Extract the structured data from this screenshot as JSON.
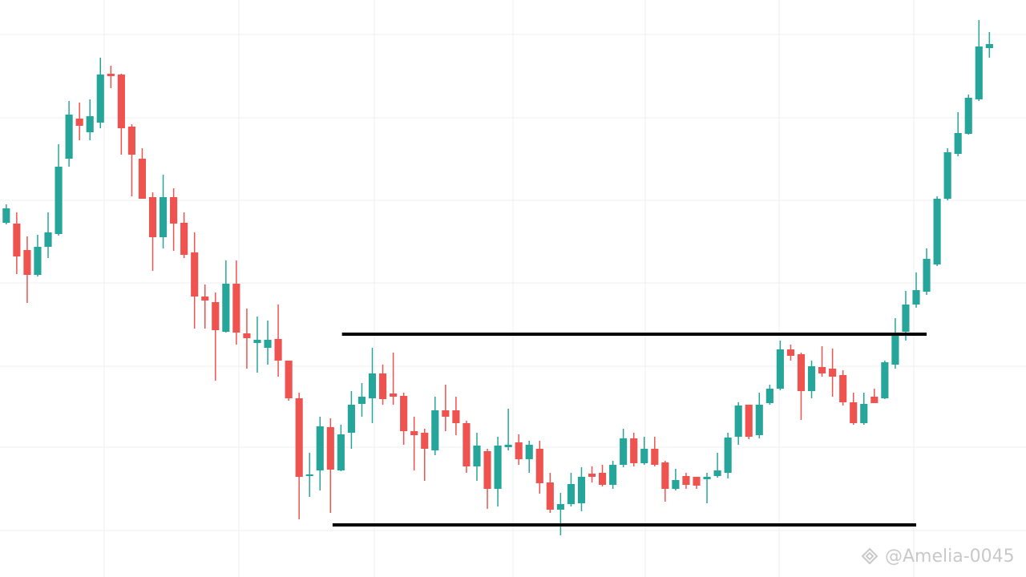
{
  "chart_data": {
    "type": "candlestick",
    "xlim": [
      -0.6,
      97.5
    ],
    "ylim": [
      0,
      720
    ],
    "up_color": "#26a69a",
    "down_color": "#ef5350",
    "open": [
      442,
      441,
      408,
      377,
      412,
      428,
      522,
      572,
      555,
      567,
      628,
      627,
      562,
      522,
      474,
      424,
      474,
      442,
      405,
      350,
      343,
      306,
      366,
      304,
      292,
      286,
      297,
      270,
      223,
      126,
      133,
      187,
      133,
      180,
      216,
      223,
      254,
      229,
      226,
      182,
      180,
      158,
      208,
      208,
      192,
      138,
      157,
      110,
      162,
      168,
      147,
      160,
      118,
      84,
      91,
      92,
      129,
      130,
      115,
      140,
      173,
      142,
      160,
      143,
      110,
      126,
      125,
      122,
      126,
      130,
      175,
      215,
      177,
      217,
      235,
      284,
      278,
      232,
      262,
      260,
      252,
      218,
      192,
      225,
      223,
      265,
      306,
      340,
      356,
      390,
      472,
      528,
      553,
      596,
      660
    ],
    "high": [
      465,
      455,
      425,
      427,
      455,
      540,
      594,
      592,
      596,
      648,
      638,
      628,
      565,
      535,
      480,
      502,
      485,
      455,
      430,
      365,
      355,
      395,
      395,
      335,
      325,
      320,
      340,
      270,
      230,
      155,
      200,
      198,
      190,
      232,
      242,
      286,
      265,
      280,
      230,
      200,
      185,
      225,
      240,
      225,
      195,
      180,
      160,
      175,
      210,
      178,
      170,
      170,
      130,
      105,
      130,
      137,
      138,
      140,
      145,
      185,
      180,
      175,
      175,
      145,
      135,
      130,
      125,
      130,
      155,
      180,
      218,
      215,
      230,
      240,
      295,
      290,
      280,
      270,
      288,
      285,
      258,
      230,
      230,
      235,
      270,
      323,
      357,
      380,
      410,
      475,
      535,
      580,
      602,
      695,
      680
    ],
    "low": [
      440,
      378,
      342,
      375,
      398,
      426,
      512,
      545,
      545,
      560,
      610,
      527,
      475,
      472,
      382,
      410,
      407,
      398,
      310,
      310,
      245,
      305,
      290,
      260,
      255,
      265,
      250,
      220,
      72,
      100,
      108,
      80,
      132,
      160,
      200,
      192,
      215,
      215,
      165,
      133,
      120,
      152,
      182,
      177,
      130,
      120,
      85,
      88,
      158,
      140,
      130,
      104,
      80,
      52,
      88,
      82,
      118,
      113,
      110,
      137,
      138,
      140,
      138,
      94,
      108,
      110,
      110,
      92,
      124,
      123,
      165,
      172,
      173,
      215,
      233,
      270,
      196,
      223,
      250,
      225,
      214,
      190,
      190,
      217,
      222,
      260,
      295,
      336,
      352,
      388,
      470,
      525,
      552,
      594,
      648
    ],
    "close": [
      460,
      400,
      377,
      412,
      430,
      512,
      577,
      563,
      575,
      627,
      625,
      560,
      527,
      472,
      424,
      474,
      441,
      402,
      350,
      345,
      308,
      366,
      305,
      298,
      296,
      296,
      270,
      223,
      125,
      128,
      188,
      134,
      178,
      215,
      225,
      254,
      222,
      225,
      182,
      177,
      160,
      208,
      200,
      192,
      138,
      164,
      110,
      164,
      165,
      147,
      165,
      117,
      84,
      91,
      116,
      125,
      125,
      115,
      140,
      173,
      142,
      160,
      140,
      110,
      121,
      115,
      114,
      125,
      133,
      174,
      214,
      175,
      215,
      235,
      284,
      276,
      232,
      263,
      254,
      250,
      218,
      192,
      216,
      217,
      268,
      305,
      340,
      358,
      397,
      472,
      530,
      554,
      598,
      662,
      665
    ],
    "lines": [
      {
        "value": 303,
        "x": [
          32.1,
          88.0
        ],
        "color": "#000000"
      },
      {
        "value": 65,
        "x": [
          31.2,
          87.0
        ],
        "color": "#000000"
      }
    ],
    "watermark": "@Amelia-0045"
  }
}
